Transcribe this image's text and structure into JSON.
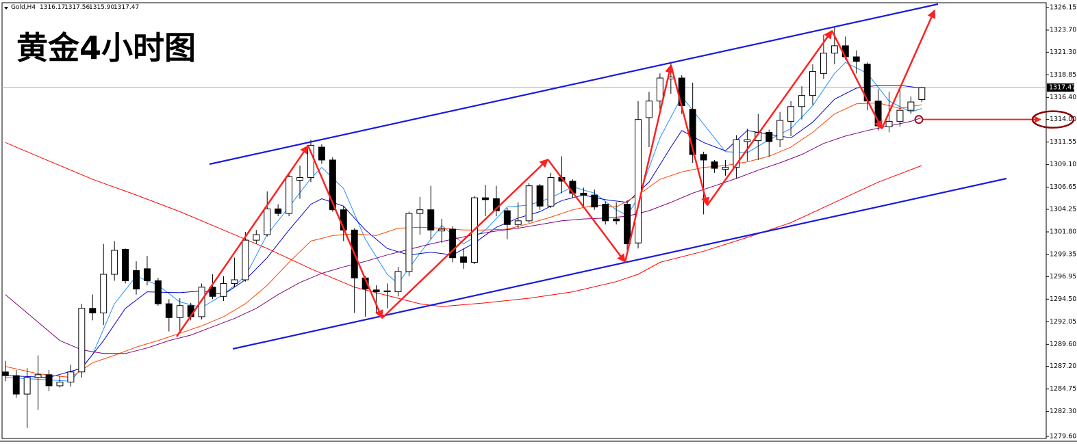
{
  "header": {
    "symbol": "Gold,H4",
    "ohlc": [
      "1316.17",
      "1317.56",
      "1315.90",
      "1317.47"
    ]
  },
  "chart_data": {
    "type": "candlestick",
    "title": "黄金4小时图",
    "xlim": [
      -0.3,
      95.4
    ],
    "ylim": [
      1279.38,
      1326.67
    ],
    "yticks": [
      {
        "value": 1326.15,
        "label": "1326.15"
      },
      {
        "value": 1323.7,
        "label": "1323.70"
      },
      {
        "value": 1321.3,
        "label": "1321.30"
      },
      {
        "value": 1318.85,
        "label": "1318.85"
      },
      {
        "value": 1316.4,
        "label": "1316.40"
      },
      {
        "value": 1314,
        "label": "1314.00",
        "highlight": true
      },
      {
        "value": 1311.55,
        "label": "1311.55"
      },
      {
        "value": 1309.1,
        "label": "1309.10"
      },
      {
        "value": 1306.65,
        "label": "1306.65"
      },
      {
        "value": 1304.25,
        "label": "1304.25"
      },
      {
        "value": 1301.8,
        "label": "1301.80"
      },
      {
        "value": 1299.35,
        "label": "1299.35"
      },
      {
        "value": 1296.95,
        "label": "1296.95"
      },
      {
        "value": 1294.5,
        "label": "1294.50"
      },
      {
        "value": 1292.05,
        "label": "1292.05"
      },
      {
        "value": 1289.6,
        "label": "1289.60"
      },
      {
        "value": 1287.2,
        "label": "1287.20"
      },
      {
        "value": 1284.75,
        "label": "1284.75"
      },
      {
        "value": 1282.3,
        "label": "1282.30"
      },
      {
        "value": 1279.6,
        "label": "1279.60"
      }
    ],
    "price_line": {
      "value": 1317.47,
      "label": "1317.47"
    },
    "up_color": "#ffffff",
    "down_color": "#000000",
    "open": [
      1286.6,
      1286.2,
      1284.2,
      1286.0,
      1286.3,
      1285.1,
      1285.5,
      1286.6,
      1293.5,
      1293.0,
      1297.2,
      1299.9,
      1297.6,
      1297.8,
      1296.5,
      1294.0,
      1292.5,
      1293.8,
      1292.6,
      1295.8,
      1294.8,
      1296.2,
      1296.6,
      1300.9,
      1301.5,
      1304.3,
      1303.8,
      1307.4,
      1307.7,
      1311.0,
      1309.6,
      1304.2,
      1302.0,
      1296.8,
      1295.5,
      1295.3,
      1295.3,
      1297.5,
      1303.8,
      1304.2,
      1301.9,
      1302.1,
      1299.1,
      1298.5,
      1305.5,
      1305.4,
      1304.1,
      1302.6,
      1303.0,
      1306.8,
      1304.6,
      1307.7,
      1307.3,
      1306.0,
      1305.8,
      1304.8,
      1303.2,
      1304.8,
      1300.6,
      1314.2,
      1316.0,
      1318.4,
      1318.5,
      1315.1,
      1310.2,
      1309.4,
      1308.6,
      1308.8,
      1311.6,
      1311.7,
      1312.6,
      1311.8,
      1313.8,
      1315.4,
      1316.6,
      1319.0,
      1321.2,
      1322.0,
      1320.8,
      1320.0,
      1316.0,
      1313.2,
      1313.8,
      1315.0,
      1316.17
    ],
    "high": [
      1287.8,
      1286.8,
      1287.0,
      1288.4,
      1286.8,
      1286.2,
      1287.4,
      1294.0,
      1295.0,
      1300.5,
      1300.8,
      1300.0,
      1298.6,
      1299.2,
      1296.8,
      1294.5,
      1294.6,
      1294.1,
      1296.2,
      1297.2,
      1297.0,
      1299.0,
      1301.8,
      1302.0,
      1306.2,
      1304.8,
      1308.0,
      1309.0,
      1311.8,
      1311.3,
      1309.9,
      1304.6,
      1302.2,
      1297.0,
      1296.0,
      1296.2,
      1298.0,
      1304.0,
      1305.6,
      1306.8,
      1303.2,
      1302.4,
      1300.0,
      1305.7,
      1306.9,
      1306.8,
      1304.4,
      1305.0,
      1307.1,
      1307.0,
      1308.2,
      1310.0,
      1307.5,
      1306.6,
      1306.4,
      1305.1,
      1305.0,
      1305.2,
      1316.0,
      1317.0,
      1319.0,
      1320.2,
      1318.8,
      1318.0,
      1310.5,
      1309.6,
      1309.6,
      1312.3,
      1313.0,
      1314.6,
      1312.9,
      1314.8,
      1316.0,
      1317.6,
      1320.0,
      1323.2,
      1324.0,
      1323.0,
      1321.5,
      1320.2,
      1317.3,
      1317.0,
      1317.2,
      1316.5,
      1317.56
    ],
    "low": [
      1285.6,
      1283.8,
      1280.5,
      1282.5,
      1284.5,
      1284.9,
      1285.0,
      1286.0,
      1292.2,
      1291.7,
      1296.5,
      1296.2,
      1295.0,
      1296.0,
      1293.8,
      1291.0,
      1290.8,
      1292.2,
      1292.3,
      1294.5,
      1294.3,
      1295.8,
      1296.4,
      1300.5,
      1301.3,
      1303.5,
      1303.5,
      1305.4,
      1307.2,
      1309.2,
      1304.0,
      1300.8,
      1293.0,
      1292.6,
      1293.0,
      1293.5,
      1294.8,
      1297.0,
      1301.5,
      1301.0,
      1300.6,
      1298.5,
      1297.8,
      1298.3,
      1303.5,
      1303.5,
      1301.0,
      1302.2,
      1302.8,
      1304.2,
      1304.4,
      1306.0,
      1305.5,
      1304.6,
      1304.2,
      1302.6,
      1302.6,
      1299.3,
      1300.0,
      1311.0,
      1315.0,
      1316.8,
      1314.6,
      1309.3,
      1303.7,
      1308.2,
      1307.9,
      1307.6,
      1309.5,
      1309.6,
      1310.0,
      1311.0,
      1312.2,
      1314.0,
      1315.6,
      1318.4,
      1320.0,
      1320.5,
      1319.0,
      1315.0,
      1312.8,
      1312.6,
      1313.2,
      1314.6,
      1315.9
    ],
    "close": [
      1286.2,
      1284.2,
      1286.0,
      1286.3,
      1285.1,
      1285.5,
      1286.6,
      1293.5,
      1293.0,
      1297.2,
      1299.8,
      1296.5,
      1295.6,
      1296.5,
      1294.0,
      1292.5,
      1293.8,
      1292.6,
      1295.8,
      1294.8,
      1296.2,
      1296.6,
      1300.9,
      1301.5,
      1304.3,
      1303.8,
      1307.8,
      1307.7,
      1311.2,
      1309.6,
      1304.2,
      1302.0,
      1296.8,
      1295.6,
      1295.3,
      1295.4,
      1297.5,
      1303.8,
      1304.2,
      1302.0,
      1302.1,
      1299.0,
      1298.5,
      1305.5,
      1305.3,
      1304.1,
      1302.6,
      1303.0,
      1306.8,
      1304.6,
      1307.7,
      1307.3,
      1306.0,
      1305.8,
      1304.5,
      1303.0,
      1303.0,
      1300.5,
      1314.0,
      1316.0,
      1318.5,
      1318.6,
      1315.5,
      1310.2,
      1309.6,
      1308.7,
      1308.8,
      1311.8,
      1311.8,
      1312.6,
      1311.6,
      1313.9,
      1315.4,
      1316.6,
      1319.2,
      1321.2,
      1322.0,
      1320.8,
      1320.3,
      1316.0,
      1313.3,
      1313.8,
      1315.0,
      1315.9,
      1317.47
    ],
    "lines": [
      {
        "color": "#1e90ff",
        "x": [
          0,
          3,
          6,
          8,
          10,
          12,
          14,
          16,
          18,
          20,
          22,
          24,
          26,
          28,
          29,
          31,
          33,
          35,
          36,
          38,
          40,
          42,
          44,
          46,
          48,
          50,
          52,
          54,
          56,
          57,
          58,
          60,
          62,
          64,
          66,
          68,
          70,
          72,
          74,
          76,
          77,
          79,
          81,
          83,
          84
        ],
        "values": [
          1286.0,
          1285.8,
          1285.6,
          1288.5,
          1294.0,
          1297.0,
          1296.0,
          1294.2,
          1293.6,
          1295.0,
          1297.0,
          1301.5,
          1304.5,
          1307.6,
          1308.8,
          1306.5,
          1301.0,
          1297.2,
          1296.2,
          1299.5,
          1302.5,
          1300.5,
          1302.0,
          1304.5,
          1304.7,
          1305.5,
          1306.7,
          1306.0,
          1304.2,
          1303.6,
          1305.5,
          1312.0,
          1316.5,
          1313.5,
          1310.5,
          1310.4,
          1311.8,
          1313.0,
          1315.5,
          1319.0,
          1320.2,
          1319.0,
          1316.0,
          1314.8,
          1315.2
        ]
      },
      {
        "color": "#0000cd",
        "x": [
          0,
          4,
          7,
          9,
          11,
          13,
          16,
          18,
          20,
          22,
          24,
          26,
          28,
          29,
          31,
          33,
          35,
          37,
          39,
          41,
          43,
          45,
          47,
          49,
          51,
          53,
          55,
          57,
          59,
          61,
          62,
          64,
          66,
          68,
          70,
          72,
          74,
          76,
          78,
          80,
          82,
          84
        ],
        "values": [
          1286.2,
          1286.0,
          1287.0,
          1290.0,
          1293.5,
          1295.3,
          1295.2,
          1295.4,
          1295.0,
          1296.6,
          1299.0,
          1302.0,
          1304.8,
          1305.4,
          1304.6,
          1302.0,
          1300.0,
          1299.3,
          1299.6,
          1299.3,
          1300.6,
          1302.3,
          1303.3,
          1304.0,
          1305.2,
          1305.8,
          1305.3,
          1305.0,
          1307.2,
          1311.0,
          1312.8,
          1311.5,
          1310.6,
          1312.8,
          1312.4,
          1312.0,
          1313.7,
          1316.2,
          1317.4,
          1317.7,
          1317.7,
          1317.4
        ]
      },
      {
        "color": "#ff4500",
        "x": [
          0,
          3,
          6,
          8,
          10,
          12,
          14,
          16,
          18,
          20,
          22,
          24,
          26,
          28,
          30,
          32,
          34,
          36,
          38,
          40,
          42,
          44,
          46,
          48,
          50,
          52,
          54,
          56,
          58,
          60,
          62,
          64,
          66,
          68,
          70,
          72,
          74,
          76,
          78,
          80,
          82,
          84
        ],
        "values": [
          1287.2,
          1286.4,
          1286.0,
          1287.6,
          1288.4,
          1289.3,
          1290.0,
          1290.8,
          1291.6,
          1292.6,
          1294.0,
          1296.0,
          1298.5,
          1300.8,
          1301.4,
          1301.6,
          1301.4,
          1302.2,
          1302.3,
          1302.2,
          1302.0,
          1302.0,
          1302.1,
          1302.7,
          1303.4,
          1304.2,
          1304.7,
          1304.5,
          1305.8,
          1307.5,
          1308.3,
          1308.8,
          1309.0,
          1309.4,
          1310.0,
          1311.0,
          1312.6,
          1314.6,
          1315.7,
          1315.8,
          1315.2,
          1315.6
        ]
      },
      {
        "color": "#800080",
        "x": [
          0,
          3,
          5,
          7,
          9,
          11,
          13,
          15,
          17,
          19,
          21,
          23,
          25,
          27,
          29,
          31,
          33,
          35,
          37,
          39,
          41,
          43,
          45,
          47,
          49,
          51,
          53,
          55,
          57,
          59,
          61,
          63,
          65,
          67,
          69,
          71,
          73,
          75,
          77,
          79,
          81,
          83,
          84
        ],
        "values": [
          1295.0,
          1292.0,
          1290.0,
          1289.0,
          1288.6,
          1288.6,
          1289.2,
          1290.0,
          1290.6,
          1291.5,
          1292.4,
          1293.5,
          1295.0,
          1296.3,
          1297.3,
          1298.0,
          1298.6,
          1299.3,
          1299.9,
          1300.5,
          1301.0,
          1301.5,
          1301.9,
          1302.2,
          1302.6,
          1303.0,
          1303.2,
          1303.3,
          1303.5,
          1304.1,
          1305.0,
          1306.0,
          1306.8,
          1307.6,
          1308.5,
          1309.3,
          1310.2,
          1311.4,
          1312.2,
          1312.8,
          1313.3,
          1313.8,
          1314.2
        ]
      },
      {
        "color": "#ff0000",
        "x": [
          0,
          4,
          8,
          12,
          16,
          20,
          24,
          28,
          32,
          36,
          38,
          40,
          44,
          48,
          52,
          56,
          58,
          60,
          64,
          68,
          72,
          76,
          80,
          84
        ],
        "values": [
          1311.5,
          1309.5,
          1307.5,
          1305.8,
          1304.0,
          1302.0,
          1300.0,
          1297.8,
          1295.8,
          1294.6,
          1294.0,
          1293.7,
          1294.1,
          1294.6,
          1295.3,
          1296.4,
          1297.2,
          1298.5,
          1299.7,
          1301.2,
          1302.8,
          1305.0,
          1307.2,
          1309.0
        ]
      }
    ]
  }
}
